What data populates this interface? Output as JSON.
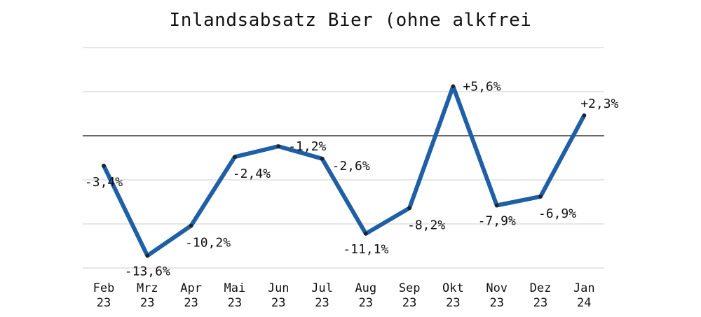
{
  "chart_data": {
    "type": "line",
    "title": "Inlandsabsatz Bier (ohne alkfrei",
    "xlabel": "",
    "ylabel": "",
    "categories": [
      "Feb 23",
      "Mrz 23",
      "Apr 23",
      "Mai 23",
      "Jun 23",
      "Jul 23",
      "Aug 23",
      "Sep 23",
      "Okt 23",
      "Nov 23",
      "Dez 23",
      "Jan 24"
    ],
    "category_lines": [
      [
        "Feb",
        "23"
      ],
      [
        "Mrz",
        "23"
      ],
      [
        "Apr",
        "23"
      ],
      [
        "Mai",
        "23"
      ],
      [
        "Jun",
        "23"
      ],
      [
        "Jul",
        "23"
      ],
      [
        "Aug",
        "23"
      ],
      [
        "Sep",
        "23"
      ],
      [
        "Okt",
        "23"
      ],
      [
        "Nov",
        "23"
      ],
      [
        "Dez",
        "23"
      ],
      [
        "Jan",
        "24"
      ]
    ],
    "series": [
      {
        "values": [
          -3.4,
          -13.6,
          -10.2,
          -2.4,
          -1.2,
          -2.6,
          -11.1,
          -8.2,
          5.6,
          -7.9,
          -6.9,
          2.3
        ],
        "labels": [
          "-3,4%",
          "-13,6%",
          "-10,2%",
          "-2,4%",
          "-1,2%",
          "-2,6%",
          "-11,1%",
          "-8,2%",
          "+5,6%",
          "-7,9%",
          "-6,9%",
          "+2,3%"
        ],
        "color": "#1f5fa6"
      }
    ],
    "ylim": [
      -15,
      10
    ],
    "gridlines": [
      -15,
      -10,
      -5,
      0,
      5,
      10
    ],
    "zero_line": true,
    "grid": true,
    "legend": "none"
  }
}
